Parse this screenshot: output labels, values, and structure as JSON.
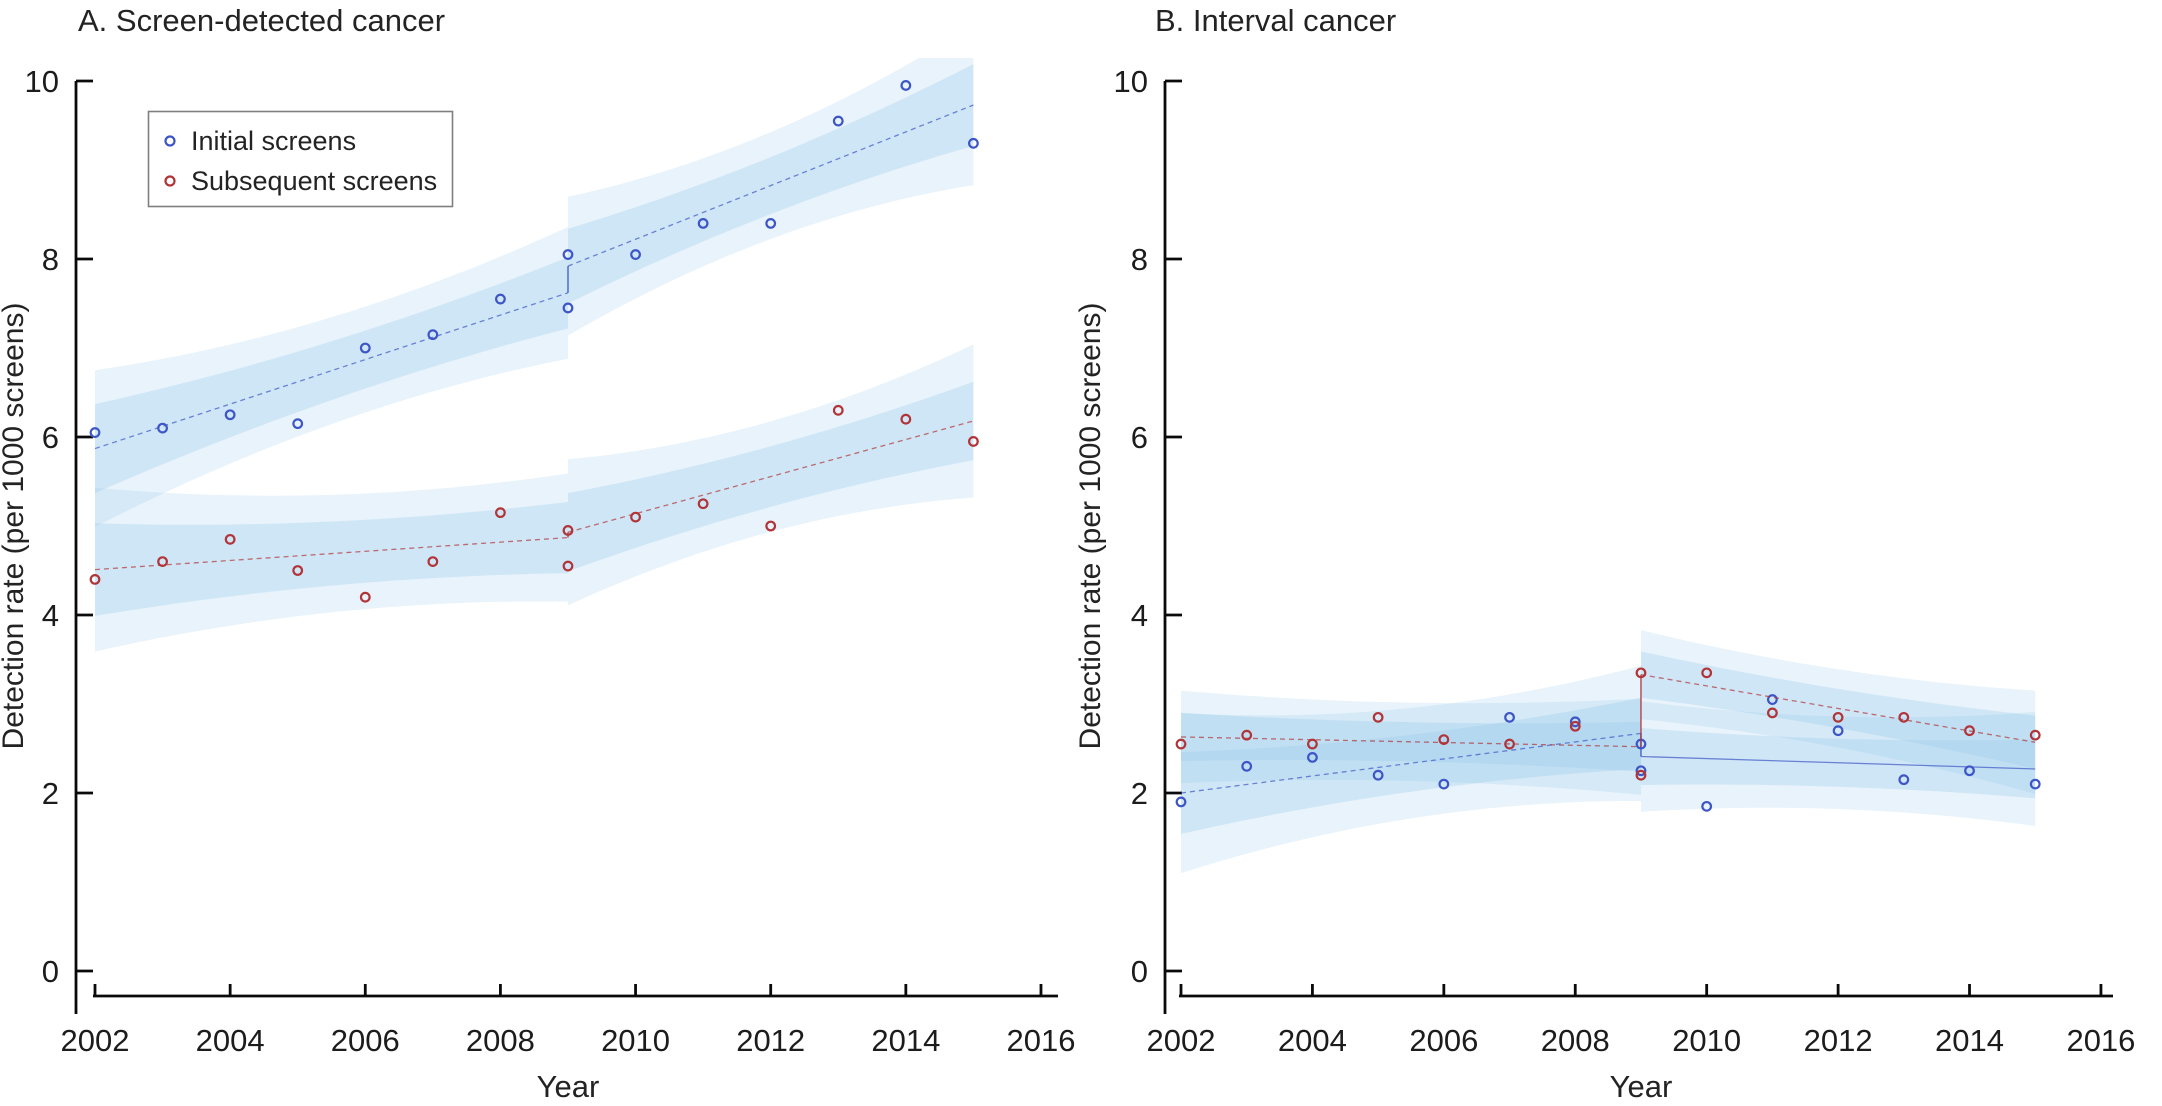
{
  "page": {
    "background": "#ffffff"
  },
  "legend": {
    "items": [
      {
        "label": "Initial screens",
        "color": "#3d55c6"
      },
      {
        "label": "Subsequent screens",
        "color": "#b13438"
      }
    ]
  },
  "band_style": {
    "fill": "#8ec5eb",
    "outer_opacity": 0.2,
    "inner_opacity": 0.28
  },
  "chart_data": [
    {
      "type": "scatter",
      "panel": "A",
      "title": "A. Screen-detected cancer",
      "xlabel": "Year",
      "ylabel": "Detection rate (per 1000 screens)",
      "xlim": [
        2002,
        2016
      ],
      "ylim": [
        0,
        10
      ],
      "x_ticks": [
        2002,
        2004,
        2006,
        2008,
        2010,
        2012,
        2014,
        2016
      ],
      "y_ticks": [
        0,
        2,
        4,
        6,
        8,
        10
      ],
      "grid": false,
      "legend_position": "upper-left",
      "break_year": 2009,
      "series": [
        {
          "name": "Initial screens",
          "color": "#3d55c6",
          "points": [
            [
              2002,
              6.05
            ],
            [
              2003,
              6.1
            ],
            [
              2004,
              6.25
            ],
            [
              2005,
              6.15
            ],
            [
              2006,
              7.0
            ],
            [
              2007,
              7.15
            ],
            [
              2008,
              7.55
            ],
            [
              2009,
              8.05
            ],
            [
              2009,
              7.45
            ],
            [
              2010,
              8.05
            ],
            [
              2011,
              8.4
            ],
            [
              2012,
              8.4
            ],
            [
              2013,
              9.55
            ],
            [
              2014,
              9.95
            ],
            [
              2015,
              9.3
            ]
          ],
          "fit_segments": [
            {
              "x": [
                2002,
                2009
              ],
              "y": [
                5.87,
                7.62
              ],
              "dash": true,
              "inner": [
                0.5,
                0.33,
                0.4
              ],
              "outer": [
                0.88,
                0.6,
                0.74
              ]
            },
            {
              "x": [
                2009,
                2015
              ],
              "y": [
                7.92,
                9.73
              ],
              "dash": true,
              "inner": [
                0.42,
                0.32,
                0.46
              ],
              "outer": [
                0.78,
                0.6,
                0.9
              ]
            }
          ]
        },
        {
          "name": "Subsequent screens",
          "color": "#b13438",
          "points": [
            [
              2002,
              4.4
            ],
            [
              2003,
              4.6
            ],
            [
              2004,
              4.85
            ],
            [
              2005,
              4.5
            ],
            [
              2006,
              4.2
            ],
            [
              2007,
              4.6
            ],
            [
              2008,
              5.15
            ],
            [
              2009,
              4.95
            ],
            [
              2009,
              4.55
            ],
            [
              2010,
              5.1
            ],
            [
              2011,
              5.25
            ],
            [
              2012,
              5.0
            ],
            [
              2013,
              6.3
            ],
            [
              2014,
              6.2
            ],
            [
              2015,
              5.95
            ]
          ],
          "fit_segments": [
            {
              "x": [
                2002,
                2009
              ],
              "y": [
                4.51,
                4.87
              ],
              "dash": true,
              "inner": [
                0.52,
                0.36,
                0.4
              ],
              "outer": [
                0.92,
                0.66,
                0.72
              ]
            },
            {
              "x": [
                2009,
                2015
              ],
              "y": [
                4.93,
                6.18
              ],
              "dash": true,
              "inner": [
                0.44,
                0.34,
                0.44
              ],
              "outer": [
                0.82,
                0.62,
                0.86
              ]
            }
          ]
        }
      ]
    },
    {
      "type": "scatter",
      "panel": "B",
      "title": "B. Interval cancer",
      "xlabel": "Year",
      "ylabel": "Detection rate (per 1000 screens)",
      "xlim": [
        2002,
        2016
      ],
      "ylim": [
        0,
        10
      ],
      "x_ticks": [
        2002,
        2004,
        2006,
        2008,
        2010,
        2012,
        2014,
        2016
      ],
      "y_ticks": [
        0,
        2,
        4,
        6,
        8,
        10
      ],
      "grid": false,
      "legend_position": "none",
      "break_year": 2009,
      "series": [
        {
          "name": "Initial screens",
          "color": "#3d55c6",
          "points": [
            [
              2002,
              1.9
            ],
            [
              2003,
              2.3
            ],
            [
              2004,
              2.4
            ],
            [
              2005,
              2.2
            ],
            [
              2006,
              2.1
            ],
            [
              2007,
              2.85
            ],
            [
              2008,
              2.8
            ],
            [
              2009,
              2.55
            ],
            [
              2009,
              2.25
            ],
            [
              2010,
              1.85
            ],
            [
              2011,
              3.05
            ],
            [
              2012,
              2.7
            ],
            [
              2013,
              2.15
            ],
            [
              2014,
              2.25
            ],
            [
              2015,
              2.1
            ]
          ],
          "fit_segments": [
            {
              "x": [
                2002,
                2009
              ],
              "y": [
                2.0,
                2.67
              ],
              "dash": true,
              "inner": [
                0.46,
                0.32,
                0.4
              ],
              "outer": [
                0.9,
                0.62,
                0.76
              ]
            },
            {
              "x": [
                2009,
                2015
              ],
              "y": [
                2.41,
                2.27
              ],
              "dash": false,
              "inner": [
                0.32,
                0.27,
                0.33
              ],
              "outer": [
                0.62,
                0.52,
                0.64
              ]
            }
          ]
        },
        {
          "name": "Subsequent screens",
          "color": "#b13438",
          "points": [
            [
              2002,
              2.55
            ],
            [
              2003,
              2.65
            ],
            [
              2004,
              2.55
            ],
            [
              2005,
              2.85
            ],
            [
              2006,
              2.6
            ],
            [
              2007,
              2.55
            ],
            [
              2008,
              2.75
            ],
            [
              2009,
              3.35
            ],
            [
              2009,
              2.2
            ],
            [
              2010,
              3.35
            ],
            [
              2011,
              2.9
            ],
            [
              2012,
              2.85
            ],
            [
              2013,
              2.85
            ],
            [
              2014,
              2.7
            ],
            [
              2015,
              2.65
            ]
          ],
          "fit_segments": [
            {
              "x": [
                2002,
                2009
              ],
              "y": [
                2.63,
                2.52
              ],
              "dash": true,
              "inner": [
                0.27,
                0.22,
                0.28
              ],
              "outer": [
                0.52,
                0.44,
                0.54
              ]
            },
            {
              "x": [
                2009,
                2015
              ],
              "y": [
                3.33,
                2.57
              ],
              "dash": true,
              "inner": [
                0.26,
                0.22,
                0.3
              ],
              "outer": [
                0.5,
                0.44,
                0.58
              ]
            }
          ]
        }
      ]
    }
  ]
}
